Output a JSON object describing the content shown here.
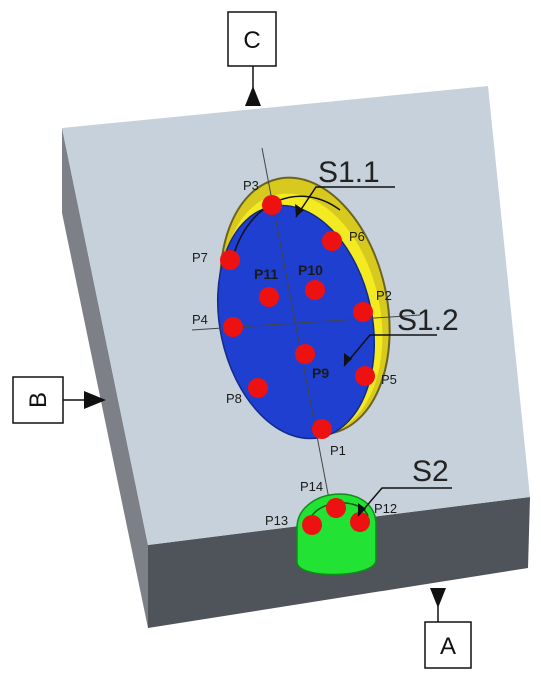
{
  "colors": {
    "plate_top": "#c7d1db",
    "plate_left_side": "#7d8187",
    "plate_front_side": "#4f545a",
    "surface_s11": "#d8c91e",
    "surface_s12": "#1f3fd0",
    "surface_s2": "#22e234",
    "point": "#ee1111"
  },
  "datums": {
    "c": "C",
    "b": "B",
    "a": "A"
  },
  "surfaces": {
    "s11": "S1.1",
    "s12": "S1.2",
    "s2": "S2"
  },
  "points": [
    {
      "id": "p1",
      "label": "P1",
      "bold": false
    },
    {
      "id": "p2",
      "label": "P2",
      "bold": false
    },
    {
      "id": "p3",
      "label": "P3",
      "bold": false
    },
    {
      "id": "p4",
      "label": "P4",
      "bold": false
    },
    {
      "id": "p5",
      "label": "P5",
      "bold": false
    },
    {
      "id": "p6",
      "label": "P6",
      "bold": false
    },
    {
      "id": "p7",
      "label": "P7",
      "bold": false
    },
    {
      "id": "p8",
      "label": "P8",
      "bold": false
    },
    {
      "id": "p9",
      "label": "P9",
      "bold": true
    },
    {
      "id": "p10",
      "label": "P10",
      "bold": true
    },
    {
      "id": "p11",
      "label": "P11",
      "bold": true
    },
    {
      "id": "p12",
      "label": "P12",
      "bold": false
    },
    {
      "id": "p13",
      "label": "P13",
      "bold": false
    },
    {
      "id": "p14",
      "label": "P14",
      "bold": false
    }
  ]
}
